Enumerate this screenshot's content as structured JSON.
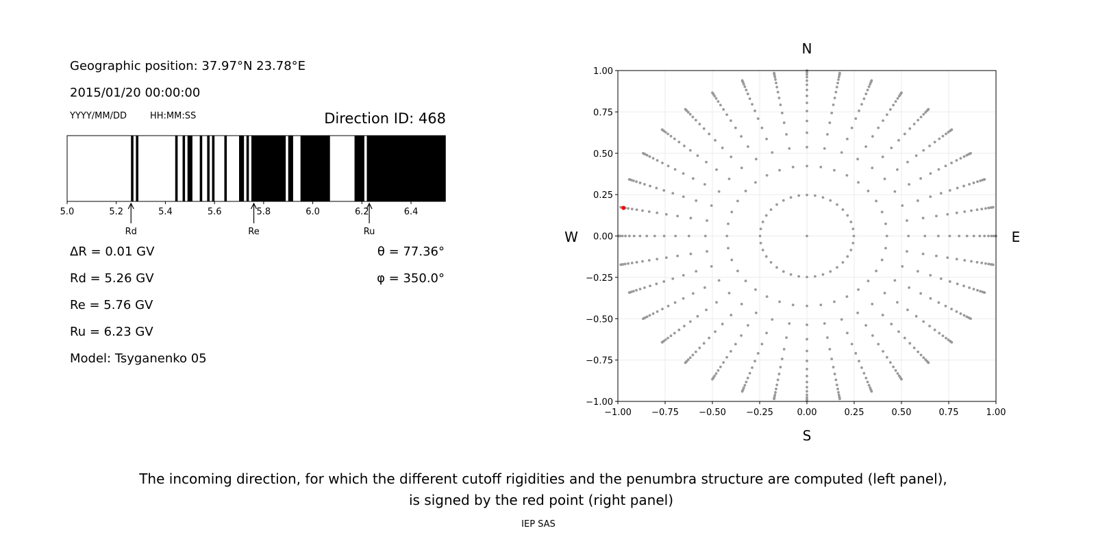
{
  "left_panel": {
    "geo_position": "Geographic position: 37.97°N 23.78°E",
    "datetime": "2015/01/20 00:00:00",
    "date_format": "YYYY/MM/DD",
    "time_format": "HH:MM:SS",
    "direction_id": "Direction ID: 468",
    "delta_r": "ΔR = 0.01 GV",
    "rd": "Rd = 5.26 GV",
    "re": "Re = 5.76 GV",
    "ru": "Ru = 6.23 GV",
    "model": "Model: Tsyganenko 05",
    "theta": "θ = 77.36°",
    "phi": "φ = 350.0°"
  },
  "caption": {
    "line1": "The incoming direction, for which the different cutoff rigidities and the penumbra structure are computed (left panel),",
    "line2": "is signed by the red point (right panel)",
    "credit": "IEP SAS"
  },
  "chart_data": [
    {
      "type": "penumbra-bar",
      "xlim": [
        5.0,
        6.54
      ],
      "xticks": [
        "5.0",
        "5.2",
        "5.4",
        "5.6",
        "5.8",
        "6.0",
        "6.2",
        "6.4"
      ],
      "forbidden_color": "#000000",
      "allowed_color": "#ffffff",
      "forbidden_intervals": [
        [
          5.26,
          5.27
        ],
        [
          5.28,
          5.29
        ],
        [
          5.44,
          5.45
        ],
        [
          5.47,
          5.48
        ],
        [
          5.49,
          5.51
        ],
        [
          5.54,
          5.55
        ],
        [
          5.57,
          5.58
        ],
        [
          5.59,
          5.6
        ],
        [
          5.64,
          5.65
        ],
        [
          5.7,
          5.72
        ],
        [
          5.73,
          5.74
        ],
        [
          5.75,
          5.89
        ],
        [
          5.9,
          5.92
        ],
        [
          5.95,
          6.07
        ],
        [
          6.17,
          6.21
        ],
        [
          6.22,
          6.54
        ]
      ],
      "markers": [
        {
          "label": "Rd",
          "value": 5.26
        },
        {
          "label": "Re",
          "value": 5.76
        },
        {
          "label": "Ru",
          "value": 6.23
        }
      ]
    },
    {
      "type": "scatter",
      "xlim": [
        -1.0,
        1.0
      ],
      "ylim": [
        -1.0,
        1.0
      ],
      "xticks": [
        "−1.00",
        "−0.75",
        "−0.50",
        "−0.25",
        "0.00",
        "0.25",
        "0.50",
        "0.75",
        "1.00"
      ],
      "yticks": [
        "−1.00",
        "−0.75",
        "−0.50",
        "−0.25",
        "0.00",
        "0.25",
        "0.50",
        "0.75",
        "1.00"
      ],
      "grid": true,
      "compass": {
        "N": "N",
        "S": "S",
        "E": "E",
        "W": "W"
      },
      "point_color": "#999999",
      "center_point": [
        0,
        0
      ],
      "inner_ring": {
        "r": 0.248,
        "azimuth_step_deg": 10
      },
      "ray_azimuth_step_deg": 10,
      "ray_radii": [
        0.423,
        0.537,
        0.624,
        0.695,
        0.755,
        0.805,
        0.847,
        0.883,
        0.914,
        0.939,
        0.96,
        0.976,
        0.988,
        0.996,
        1.0
      ],
      "highlight": {
        "x": -0.97,
        "y": 0.17,
        "color": "#ff0000"
      }
    }
  ]
}
